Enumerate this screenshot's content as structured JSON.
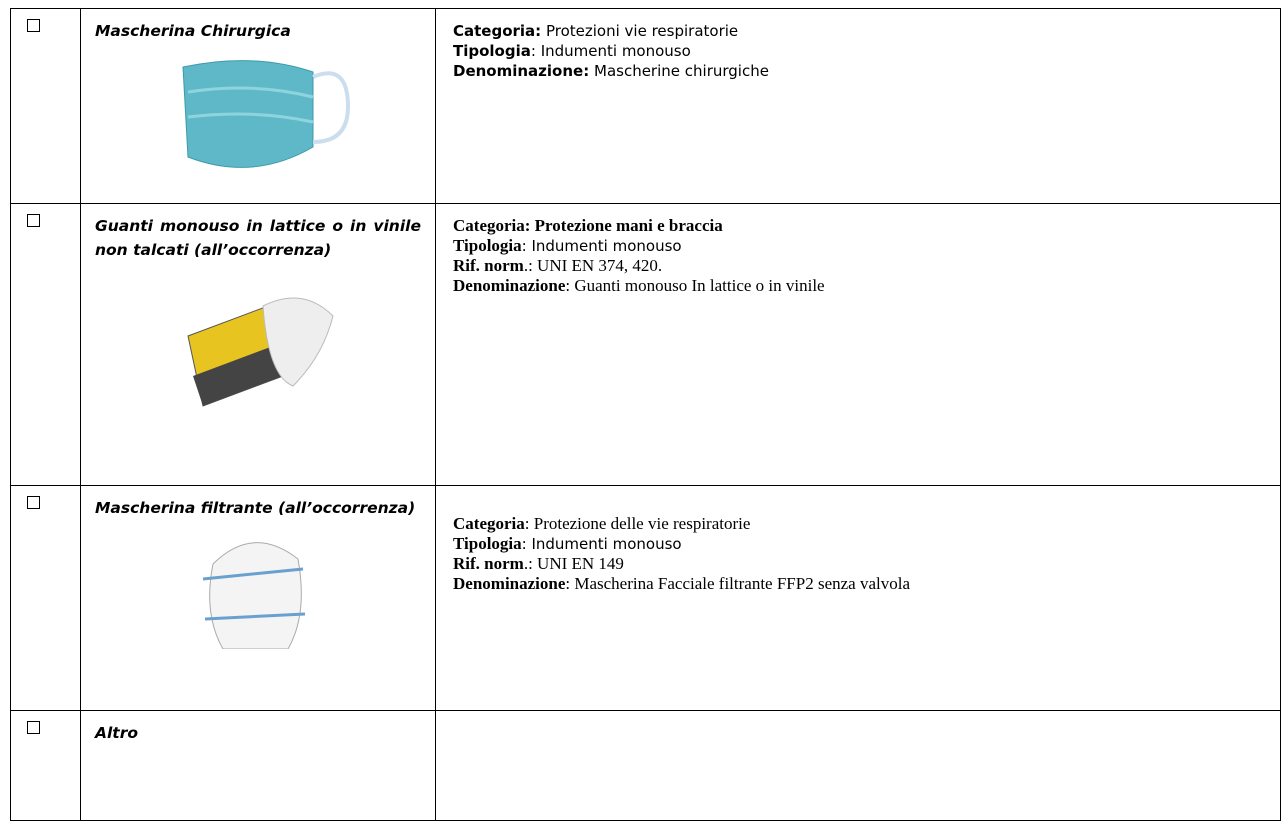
{
  "table": {
    "rows": [
      {
        "item": "Mascherina Chirurgica",
        "details": [
          {
            "label": "Categoria:",
            "value": "Protezioni vie respiratorie"
          },
          {
            "label": "Tipologia",
            "value": ": Indumenti monouso"
          },
          {
            "label": "Denominazione:",
            "value": "Mascherine chirurgiche"
          }
        ]
      },
      {
        "item": "Guanti monouso in lattice o in vinile non talcati (all’occorrenza)",
        "details": [
          {
            "label": "Categoria: Protezione mani e braccia"
          },
          {
            "label": "Tipologia",
            "value": ": Indumenti monouso"
          },
          {
            "label": "Rif. norm",
            "value": ".: UNI EN 374, 420."
          },
          {
            "label": "Denominazione",
            "value": ": Guanti monouso In lattice o in vinile"
          }
        ]
      },
      {
        "item": "Mascherina filtrante (all’occorrenza)",
        "details": [
          {
            "label": "Categoria",
            "value": ": Protezione delle vie respiratorie"
          },
          {
            "label": "Tipologia",
            "value": ": Indumenti monouso"
          },
          {
            "label": "Rif. norm",
            "value": ".: UNI EN 149"
          },
          {
            "label": "Denominazione",
            "value": ": Mascherina Facciale filtrante FFP2 senza valvola"
          }
        ]
      },
      {
        "item": "Altro",
        "details": []
      }
    ]
  }
}
